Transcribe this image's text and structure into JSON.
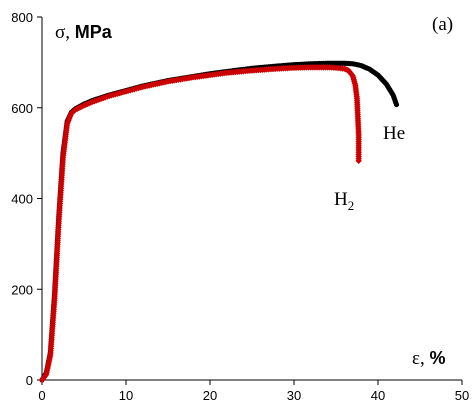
{
  "chart_data": {
    "type": "line",
    "panel_label": "(a)",
    "ylabel": {
      "symbol": "σ, ",
      "unit": "MPa"
    },
    "xlabel": {
      "symbol": "ε, ",
      "unit": "%"
    },
    "xlim": [
      0,
      50
    ],
    "ylim": [
      0,
      800
    ],
    "x_ticks": [
      0,
      10,
      20,
      30,
      40,
      50
    ],
    "y_ticks": [
      0,
      200,
      400,
      600,
      800
    ],
    "grid": false,
    "series": [
      {
        "name": "He",
        "color": "#000000",
        "marker": "circle",
        "points": [
          [
            0,
            0
          ],
          [
            0.5,
            15
          ],
          [
            1,
            60
          ],
          [
            1.5,
            190
          ],
          [
            2,
            360
          ],
          [
            2.5,
            500
          ],
          [
            3,
            570
          ],
          [
            3.5,
            590
          ],
          [
            4,
            598
          ],
          [
            5,
            608
          ],
          [
            6,
            616
          ],
          [
            8,
            628
          ],
          [
            10,
            638
          ],
          [
            12,
            648
          ],
          [
            15,
            660
          ],
          [
            18,
            669
          ],
          [
            20,
            675
          ],
          [
            22,
            680
          ],
          [
            25,
            687
          ],
          [
            28,
            692
          ],
          [
            30,
            695
          ],
          [
            32,
            697
          ],
          [
            34,
            698
          ],
          [
            36,
            698
          ],
          [
            37,
            697
          ],
          [
            38,
            693
          ],
          [
            39,
            685
          ],
          [
            40,
            672
          ],
          [
            41,
            652
          ],
          [
            41.8,
            628
          ],
          [
            42.2,
            607
          ]
        ]
      },
      {
        "name": "H2",
        "name_main": "H",
        "name_sub": "2",
        "color": "#cc0000",
        "marker": "diamond",
        "points": [
          [
            0,
            0
          ],
          [
            0.5,
            12
          ],
          [
            1,
            55
          ],
          [
            1.5,
            180
          ],
          [
            2,
            350
          ],
          [
            2.5,
            490
          ],
          [
            3,
            565
          ],
          [
            3.5,
            588
          ],
          [
            4,
            596
          ],
          [
            5,
            605
          ],
          [
            6,
            613
          ],
          [
            8,
            626
          ],
          [
            10,
            636
          ],
          [
            12,
            646
          ],
          [
            15,
            658
          ],
          [
            18,
            667
          ],
          [
            20,
            672
          ],
          [
            22,
            677
          ],
          [
            25,
            682
          ],
          [
            28,
            686
          ],
          [
            30,
            688
          ],
          [
            32,
            689
          ],
          [
            34,
            689
          ],
          [
            35,
            688
          ],
          [
            36,
            686
          ],
          [
            36.5,
            682
          ],
          [
            37,
            670
          ],
          [
            37.3,
            650
          ],
          [
            37.5,
            620
          ],
          [
            37.6,
            580
          ],
          [
            37.7,
            540
          ],
          [
            37.7,
            483
          ]
        ]
      }
    ]
  }
}
